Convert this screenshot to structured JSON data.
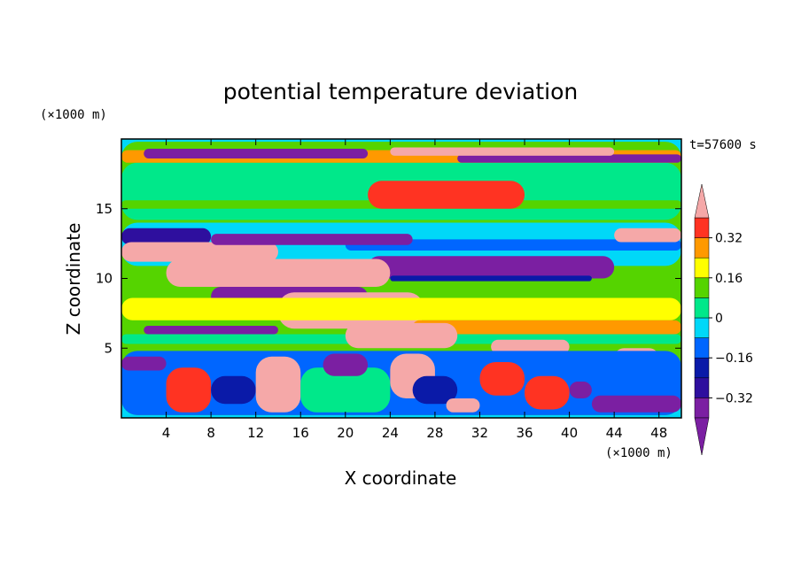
{
  "chart_data": {
    "type": "heatmap",
    "title": "potential temperature deviation",
    "xlabel": "X coordinate",
    "ylabel": "Z coordinate",
    "x_unit": "(×1000 m)",
    "y_unit": "(×1000 m)",
    "time_label": "t=57600 s",
    "xlim": [
      0,
      50
    ],
    "ylim": [
      0,
      20
    ],
    "x_ticks": [
      4,
      8,
      12,
      16,
      20,
      24,
      28,
      32,
      36,
      40,
      44,
      48
    ],
    "y_ticks": [
      5,
      10,
      15
    ],
    "colorbar": {
      "levels": [
        -0.4,
        -0.32,
        -0.24,
        -0.16,
        -0.08,
        0,
        0.08,
        0.16,
        0.24,
        0.32,
        0.4
      ],
      "labeled_ticks": [
        "0.32",
        "0.16",
        "0",
        "−0.16",
        "−0.32"
      ],
      "labeled_values": [
        0.32,
        0.16,
        0,
        -0.16,
        -0.32
      ],
      "colors": [
        "#7b1fa2",
        "#2e0f9e",
        "#0a1aa8",
        "#0066ff",
        "#00d8f8",
        "#00e88a",
        "#55d400",
        "#ffff00",
        "#ff9900",
        "#ff3322",
        "#f5a8a8"
      ]
    },
    "regions": [
      {
        "value": 0.06,
        "x0": 0,
        "x1": 50,
        "z0": 0.2,
        "z1": 19.8
      },
      {
        "value": 0.0,
        "x0": 0,
        "x1": 50,
        "z0": 14.2,
        "z1": 18.3
      },
      {
        "value": 0.08,
        "x0": 0,
        "x1": 50,
        "z0": 15.0,
        "z1": 15.6
      },
      {
        "value": 0.0,
        "x0": 0,
        "x1": 50,
        "z0": 16.4,
        "z1": 17.0
      },
      {
        "value": 0.2,
        "x0": 0,
        "x1": 50,
        "z0": 18.3,
        "z1": 19.2
      },
      {
        "value": -0.4,
        "x0": 2,
        "x1": 22,
        "z0": 18.6,
        "z1": 19.3
      },
      {
        "value": -0.4,
        "x0": 30,
        "x1": 50,
        "z0": 18.3,
        "z1": 18.9
      },
      {
        "value": 0.4,
        "x0": 24,
        "x1": 44,
        "z0": 18.8,
        "z1": 19.4
      },
      {
        "value": -0.12,
        "x0": 0,
        "x1": 50,
        "z0": 10.9,
        "z1": 14.0
      },
      {
        "value": -0.2,
        "x0": 20,
        "x1": 50,
        "z0": 12.0,
        "z1": 12.8
      },
      {
        "value": -0.38,
        "x0": 0,
        "x1": 8,
        "z0": 12.4,
        "z1": 13.6
      },
      {
        "value": 0.4,
        "x0": 0,
        "x1": 14,
        "z0": 11.2,
        "z1": 12.6
      },
      {
        "value": -0.4,
        "x0": 8,
        "x1": 26,
        "z0": 12.4,
        "z1": 13.2
      },
      {
        "value": 0.28,
        "x0": 22,
        "x1": 36,
        "z0": 15.0,
        "z1": 17.0
      },
      {
        "value": 0.4,
        "x0": 44,
        "x1": 50,
        "z0": 12.6,
        "z1": 13.6
      },
      {
        "value": -0.4,
        "x0": 22,
        "x1": 44,
        "z0": 10.0,
        "z1": 11.6
      },
      {
        "value": -0.3,
        "x0": 24,
        "x1": 42,
        "z0": 9.8,
        "z1": 10.2
      },
      {
        "value": 0.4,
        "x0": 4,
        "x1": 24,
        "z0": 9.4,
        "z1": 11.4
      },
      {
        "value": -0.4,
        "x0": 8,
        "x1": 22,
        "z0": 8.0,
        "z1": 9.4
      },
      {
        "value": 0.4,
        "x0": 14,
        "x1": 27,
        "z0": 6.4,
        "z1": 9.0
      },
      {
        "value": 0.12,
        "x0": 0,
        "x1": 50,
        "z0": 7.0,
        "z1": 8.6
      },
      {
        "value": 0.18,
        "x0": 26,
        "x1": 50,
        "z0": 6.0,
        "z1": 7.0
      },
      {
        "value": -0.06,
        "x0": 0,
        "x1": 50,
        "z0": 5.3,
        "z1": 6.0
      },
      {
        "value": -0.4,
        "x0": 2,
        "x1": 14,
        "z0": 6.0,
        "z1": 6.6
      },
      {
        "value": 0.4,
        "x0": 20,
        "x1": 30,
        "z0": 5.0,
        "z1": 6.8
      },
      {
        "value": 0.4,
        "x0": 33,
        "x1": 40,
        "z0": 4.6,
        "z1": 5.6
      },
      {
        "value": 0.4,
        "x0": 44,
        "x1": 48,
        "z0": 3.6,
        "z1": 5.0
      },
      {
        "value": -0.16,
        "x0": 0,
        "x1": 50,
        "z0": 0.2,
        "z1": 4.8
      },
      {
        "value": -0.4,
        "x0": 0,
        "x1": 4,
        "z0": 3.4,
        "z1": 4.4
      },
      {
        "value": 0.3,
        "x0": 4,
        "x1": 8,
        "z0": 0.4,
        "z1": 3.6
      },
      {
        "value": -0.3,
        "x0": 8,
        "x1": 12,
        "z0": 1.0,
        "z1": 3.0
      },
      {
        "value": 0.35,
        "x0": 12,
        "x1": 16,
        "z0": 0.4,
        "z1": 4.4
      },
      {
        "value": 0.0,
        "x0": 16,
        "x1": 24,
        "z0": 0.4,
        "z1": 3.6
      },
      {
        "value": -0.4,
        "x0": 18,
        "x1": 22,
        "z0": 3.0,
        "z1": 4.6
      },
      {
        "value": 0.4,
        "x0": 24,
        "x1": 28,
        "z0": 1.4,
        "z1": 4.6
      },
      {
        "value": -0.3,
        "x0": 26,
        "x1": 30,
        "z0": 1.0,
        "z1": 3.0
      },
      {
        "value": 0.4,
        "x0": 29,
        "x1": 32,
        "z0": 0.4,
        "z1": 1.4
      },
      {
        "value": 0.3,
        "x0": 32,
        "x1": 36,
        "z0": 1.6,
        "z1": 4.0
      },
      {
        "value": -0.4,
        "x0": 40,
        "x1": 42,
        "z0": 1.4,
        "z1": 2.6
      },
      {
        "value": 0.3,
        "x0": 36,
        "x1": 40,
        "z0": 0.6,
        "z1": 3.0
      },
      {
        "value": -0.4,
        "x0": 42,
        "x1": 50,
        "z0": 0.4,
        "z1": 1.6
      }
    ]
  }
}
